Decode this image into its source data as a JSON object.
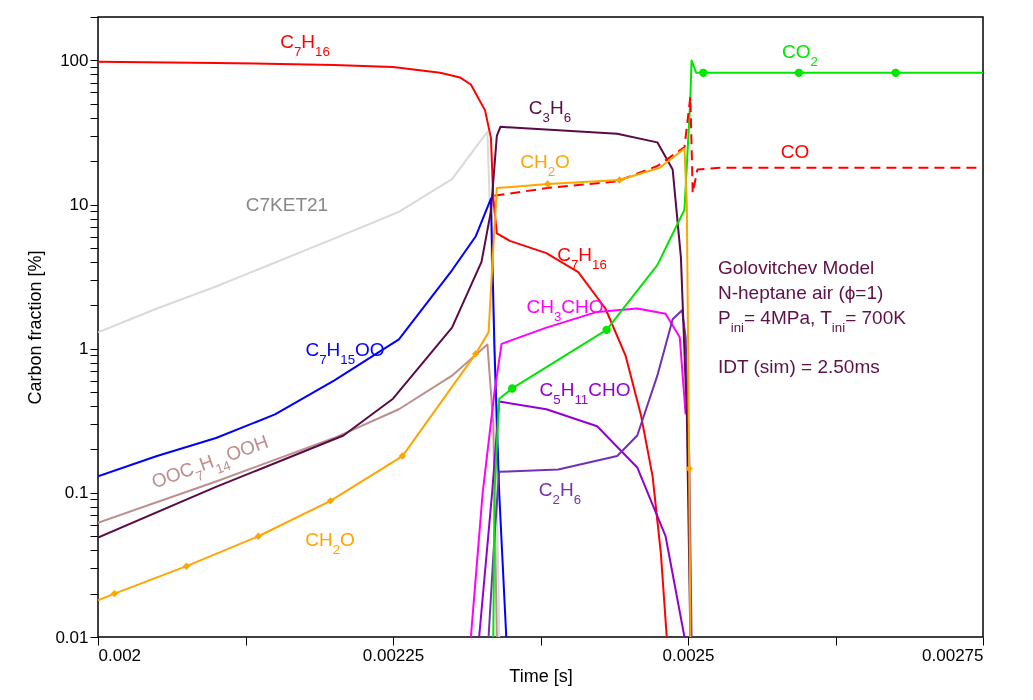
{
  "chart_data": {
    "type": "line",
    "log": true,
    "xlabel": "Time [s]",
    "ylabel": "Carbon fraction [%]",
    "xlim": [
      0.002,
      0.00275
    ],
    "ylim": [
      0.01,
      200
    ],
    "xticks": [
      0.002,
      {
        "value": 0.002125,
        "label": null
      },
      0.00225,
      {
        "value": 0.002375,
        "label": null
      },
      0.0025,
      {
        "value": 0.002625,
        "label": null
      },
      0.00275
    ],
    "yticks": [
      0.01,
      {
        "value": 0.02,
        "label": null
      },
      {
        "value": 0.03,
        "label": null
      },
      {
        "value": 0.04,
        "label": null
      },
      {
        "value": 0.05,
        "label": null
      },
      {
        "value": 0.06,
        "label": null
      },
      {
        "value": 0.07,
        "label": null
      },
      {
        "value": 0.08,
        "label": null
      },
      {
        "value": 0.09,
        "label": null
      },
      0.1,
      {
        "value": 0.2,
        "label": null
      },
      {
        "value": 0.3,
        "label": null
      },
      {
        "value": 0.4,
        "label": null
      },
      {
        "value": 0.5,
        "label": null
      },
      {
        "value": 0.6,
        "label": null
      },
      {
        "value": 0.7,
        "label": null
      },
      {
        "value": 0.8,
        "label": null
      },
      {
        "value": 0.9,
        "label": null
      },
      1,
      {
        "value": 2,
        "label": null
      },
      {
        "value": 3,
        "label": null
      },
      {
        "value": 4,
        "label": null
      },
      {
        "value": 5,
        "label": null
      },
      {
        "value": 6,
        "label": null
      },
      {
        "value": 7,
        "label": null
      },
      {
        "value": 8,
        "label": null
      },
      {
        "value": 9,
        "label": null
      },
      10,
      {
        "value": 20,
        "label": null
      },
      {
        "value": 30,
        "label": null
      },
      {
        "value": 40,
        "label": null
      },
      {
        "value": 50,
        "label": null
      },
      {
        "value": 60,
        "label": null
      },
      {
        "value": 70,
        "label": null
      },
      {
        "value": 80,
        "label": null
      },
      {
        "value": 90,
        "label": null
      },
      100,
      {
        "value": 200,
        "label": null
      }
    ],
    "series": [
      {
        "name": "C7KET21",
        "color": "#d9d9d9",
        "x": [
          0.002,
          0.00205,
          0.0021,
          0.002118,
          0.0022,
          0.002255,
          0.0023,
          0.00233,
          0.002336,
          0.00234
        ],
        "values": [
          1.3,
          1.9,
          2.7,
          3.1,
          5.8,
          8.9,
          15,
          32,
          1,
          0.01
        ]
      },
      {
        "name": "OOC$_{7}$H$_{14}$OOH",
        "color": "#bc8f8f",
        "x": [
          0.002,
          0.0021,
          0.0022,
          0.002255,
          0.0023,
          0.00233,
          0.002335,
          0.002338
        ],
        "values": [
          0.062,
          0.12,
          0.24,
          0.38,
          0.65,
          1.07,
          0.3,
          0.01
        ]
      },
      {
        "name": "C$_{7}$H$_{15}$OO",
        "color": "#0000ff",
        "x": [
          0.002,
          0.00205,
          0.0021,
          0.00215,
          0.0022,
          0.002255,
          0.0023,
          0.00232,
          0.002333,
          0.002336,
          0.00234,
          0.002346
        ],
        "values": [
          0.13,
          0.18,
          0.24,
          0.35,
          0.6,
          1.16,
          3.5,
          6,
          11,
          1,
          0.1,
          0.01
        ]
      },
      {
        "name": "C$_{7}$H$_{16}$",
        "color": "#ff0000",
        "x": [
          0.002,
          0.0021,
          0.0022,
          0.00225,
          0.00229,
          0.002307,
          0.002316,
          0.002328,
          0.002333,
          0.002335,
          0.002338,
          0.002349,
          0.00238,
          0.002407,
          0.00243,
          0.002447,
          0.00246,
          0.00247,
          0.002477,
          0.002482
        ],
        "values": [
          98,
          96,
          93,
          90,
          82,
          76,
          68,
          45,
          29,
          11,
          6.3,
          5.6,
          4.6,
          3.4,
          1.9,
          0.9,
          0.35,
          0.13,
          0.038,
          0.01
        ]
      },
      {
        "name": "CH$_{3}$CHO",
        "color": "#ff00ff",
        "x": [
          0.002316,
          0.002326,
          0.002336,
          0.002342,
          0.00238,
          0.002423,
          0.002457,
          0.002481,
          0.002493,
          0.002498
        ],
        "values": [
          0.01,
          0.1,
          0.5,
          1.08,
          1.4,
          1.8,
          1.9,
          1.75,
          1.2,
          0.35
        ]
      },
      {
        "name": "C$_{5}$H$_{11}$CHO",
        "color": "#9400d3",
        "x": [
          0.002323,
          0.002334,
          0.00234,
          0.00238,
          0.002423,
          0.002457,
          0.002481,
          0.002497
        ],
        "values": [
          0.01,
          0.1,
          0.43,
          0.38,
          0.29,
          0.15,
          0.05,
          0.01
        ]
      },
      {
        "name": "C$_{2}$H$_{6}$",
        "color": "#7030b8",
        "x": [
          0.002331,
          0.002336,
          0.00234,
          0.00239,
          0.00244,
          0.002457,
          0.002474,
          0.002487,
          0.002495,
          0.002498,
          0.002501,
          0.002503
        ],
        "values": [
          0.01,
          0.05,
          0.14,
          0.145,
          0.18,
          0.25,
          0.65,
          1.6,
          1.85,
          1.2,
          0.18,
          0.01
        ]
      },
      {
        "name": "C$_{3}$H$_{6}$",
        "color": "#5a0a46",
        "x": [
          0.002,
          0.0021,
          0.002208,
          0.00225,
          0.0023,
          0.002325,
          0.002333,
          0.002338,
          0.002341,
          0.00244,
          0.002474,
          0.002487,
          0.002494,
          0.002499,
          0.002502
        ],
        "values": [
          0.049,
          0.11,
          0.25,
          0.45,
          1.4,
          4,
          9,
          30,
          34.6,
          31,
          27,
          17.5,
          4.3,
          0.35,
          0.01
        ]
      },
      {
        "name": "CO$_{2}$",
        "color": "#00e600",
        "x": [
          0.002335,
          0.002336,
          0.00234,
          0.002351,
          0.002431,
          0.002474,
          0.002497,
          0.002502,
          0.002503,
          0.002507,
          0.00275
        ],
        "values": [
          0.01,
          0.1,
          0.45,
          0.53,
          1.35,
          3.8,
          9.2,
          54,
          100,
          82,
          82
        ]
      },
      {
        "color": "#00e600",
        "type": "scatter",
        "marker": "circle",
        "x": [
          0.002351,
          0.002431,
          0.002513,
          0.002594,
          0.002676
        ],
        "values": [
          0.53,
          1.35,
          82,
          82,
          82
        ]
      },
      {
        "name": "CO",
        "color": "#ff0000",
        "line_style": "dashed",
        "x": [
          0.002336,
          0.00238,
          0.00244,
          0.002474,
          0.002497,
          0.002502,
          0.002504,
          0.002508,
          0.002527,
          0.00275
        ],
        "values": [
          11.5,
          13,
          14.5,
          18.5,
          25,
          56,
          12,
          17.5,
          18,
          18
        ]
      },
      {
        "name": "CH$_{2}$O",
        "color": "#ffa500",
        "x": [
          0.002,
          0.002014,
          0.002075,
          0.002136,
          0.002197,
          0.002258,
          0.00232,
          0.002331,
          0.002335,
          0.002338,
          0.002381,
          0.002442,
          0.002476,
          0.002497,
          0.002499,
          0.002501,
          0.002502
        ],
        "values": [
          0.018,
          0.02,
          0.031,
          0.05,
          0.088,
          0.18,
          0.92,
          1.3,
          5,
          13,
          13.9,
          14.8,
          18,
          24.5,
          10,
          0.147,
          0.01
        ]
      },
      {
        "color": "#ffa500",
        "type": "scatter",
        "marker": "diamond",
        "x": [
          0.002014,
          0.002075,
          0.002136,
          0.002197,
          0.002258,
          0.00232,
          0.002381,
          0.002442,
          0.002501
        ],
        "values": [
          0.02,
          0.031,
          0.05,
          0.088,
          0.18,
          0.92,
          13.9,
          14.8,
          0.147
        ]
      }
    ],
    "annotations": [
      "Golovitchev Model",
      "N-heptane air (ϕ=1)",
      "P$_{ini}$= 4MPa, T$_{ini}$= 700K",
      "IDT (sim) = 2.50ms"
    ]
  }
}
